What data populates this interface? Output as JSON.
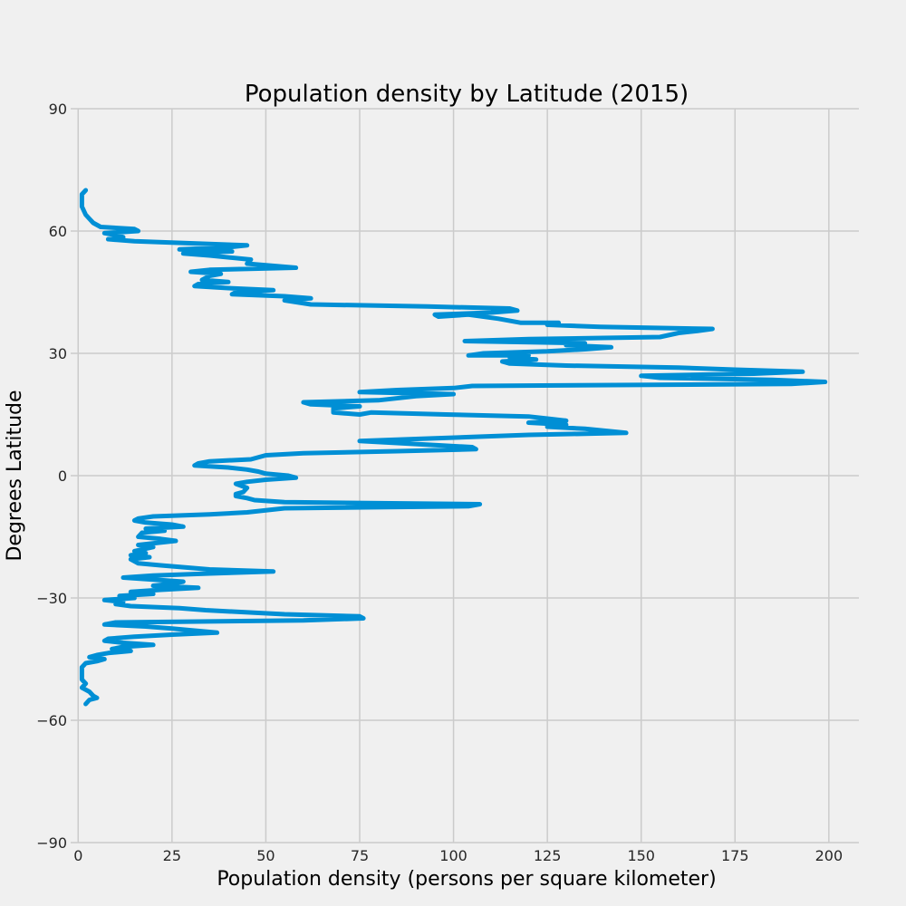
{
  "chart_data": {
    "type": "line",
    "title": "Population density by Latitude (2015)",
    "xlabel": "Population density (persons per square kilometer)",
    "ylabel": "Degrees Latitude",
    "xlim": [
      -2,
      208
    ],
    "ylim": [
      -90,
      90
    ],
    "xticks": [
      0,
      25,
      50,
      75,
      100,
      125,
      150,
      175,
      200
    ],
    "yticks": [
      -90,
      -60,
      -30,
      0,
      30,
      60,
      90
    ],
    "ytick_labels": [
      "−90",
      "−60",
      "−30",
      "0",
      "30",
      "60",
      "90"
    ],
    "grid": true,
    "orientation": "density on x-axis, latitude on y-axis",
    "series": [
      {
        "color": "#008fd5",
        "points": [
          [
            2,
            70
          ],
          [
            1,
            69
          ],
          [
            1,
            66
          ],
          [
            2,
            64
          ],
          [
            3,
            63
          ],
          [
            4,
            62
          ],
          [
            6,
            61
          ],
          [
            15,
            60.5
          ],
          [
            16,
            60
          ],
          [
            7,
            59.5
          ],
          [
            10,
            59
          ],
          [
            12,
            58.5
          ],
          [
            8,
            58
          ],
          [
            15,
            57.5
          ],
          [
            45,
            56.5
          ],
          [
            40,
            56
          ],
          [
            27,
            55.5
          ],
          [
            35,
            55.2
          ],
          [
            41,
            55
          ],
          [
            28,
            54.5
          ],
          [
            35,
            54
          ],
          [
            46,
            53
          ],
          [
            45,
            52
          ],
          [
            58,
            51
          ],
          [
            35,
            50.5
          ],
          [
            30,
            50
          ],
          [
            38,
            49.5
          ],
          [
            35,
            49
          ],
          [
            33,
            48
          ],
          [
            40,
            47.5
          ],
          [
            32,
            47
          ],
          [
            31,
            46.5
          ],
          [
            40,
            46
          ],
          [
            52,
            45.5
          ],
          [
            42,
            45
          ],
          [
            41,
            44.5
          ],
          [
            55,
            44
          ],
          [
            62,
            43.5
          ],
          [
            55,
            43
          ],
          [
            62,
            42
          ],
          [
            93,
            41.5
          ],
          [
            115,
            41
          ],
          [
            117,
            40.5
          ],
          [
            110,
            40
          ],
          [
            95,
            39.5
          ],
          [
            96,
            39
          ],
          [
            104,
            39.5
          ],
          [
            112,
            38.5
          ],
          [
            118,
            37.5
          ],
          [
            128,
            37.5
          ],
          [
            125,
            37
          ],
          [
            139,
            36.5
          ],
          [
            169,
            36
          ],
          [
            165,
            35.5
          ],
          [
            160,
            35
          ],
          [
            155,
            34
          ],
          [
            120,
            33.5
          ],
          [
            103,
            33
          ],
          [
            135,
            32.5
          ],
          [
            130,
            32
          ],
          [
            142,
            31.5
          ],
          [
            135,
            31
          ],
          [
            125,
            30.5
          ],
          [
            108,
            30
          ],
          [
            104,
            29.5
          ],
          [
            120,
            29.5
          ],
          [
            115,
            29
          ],
          [
            122,
            28.5
          ],
          [
            113,
            28
          ],
          [
            115,
            27.5
          ],
          [
            130,
            27
          ],
          [
            160,
            26.5
          ],
          [
            175,
            26
          ],
          [
            193,
            25.5
          ],
          [
            180,
            25
          ],
          [
            150,
            24.5
          ],
          [
            155,
            24
          ],
          [
            185,
            23.5
          ],
          [
            199,
            23
          ],
          [
            190,
            22.5
          ],
          [
            105,
            22
          ],
          [
            100,
            21.5
          ],
          [
            85,
            21
          ],
          [
            75,
            20.5
          ],
          [
            100,
            20
          ],
          [
            90,
            19.5
          ],
          [
            80,
            18.5
          ],
          [
            60,
            18
          ],
          [
            62,
            17.5
          ],
          [
            75,
            17
          ],
          [
            68,
            16.5
          ],
          [
            68,
            15.5
          ],
          [
            75,
            15
          ],
          [
            78,
            15.5
          ],
          [
            98,
            15
          ],
          [
            120,
            14.5
          ],
          [
            125,
            14
          ],
          [
            130,
            13.5
          ],
          [
            120,
            13
          ],
          [
            130,
            12.5
          ],
          [
            125,
            12
          ],
          [
            135,
            11.5
          ],
          [
            146,
            10.5
          ],
          [
            120,
            10
          ],
          [
            105,
            9.5
          ],
          [
            90,
            9
          ],
          [
            75,
            8.5
          ],
          [
            85,
            8
          ],
          [
            95,
            7.5
          ],
          [
            105,
            7
          ],
          [
            106,
            6.5
          ],
          [
            85,
            6
          ],
          [
            60,
            5.5
          ],
          [
            50,
            5
          ],
          [
            46,
            4
          ],
          [
            35,
            3.5
          ],
          [
            32,
            3
          ],
          [
            31,
            2.5
          ],
          [
            40,
            2
          ],
          [
            45,
            1.5
          ],
          [
            48,
            1
          ],
          [
            50,
            0.5
          ],
          [
            56,
            0
          ],
          [
            58,
            -0.5
          ],
          [
            50,
            -1
          ],
          [
            45,
            -1.5
          ],
          [
            42,
            -2
          ],
          [
            45,
            -3
          ],
          [
            44,
            -4
          ],
          [
            42,
            -4.5
          ],
          [
            42,
            -5
          ],
          [
            45,
            -5.5
          ],
          [
            47,
            -6
          ],
          [
            55,
            -6.5
          ],
          [
            107,
            -7
          ],
          [
            104,
            -7.5
          ],
          [
            55,
            -8
          ],
          [
            45,
            -9
          ],
          [
            35,
            -9.5
          ],
          [
            20,
            -10
          ],
          [
            16,
            -10.5
          ],
          [
            15,
            -11
          ],
          [
            18,
            -11.5
          ],
          [
            25,
            -12
          ],
          [
            28,
            -12.5
          ],
          [
            18,
            -13
          ],
          [
            23,
            -13.5
          ],
          [
            17,
            -14
          ],
          [
            16,
            -15
          ],
          [
            22,
            -15.5
          ],
          [
            26,
            -16
          ],
          [
            16,
            -17
          ],
          [
            20,
            -17.5
          ],
          [
            15,
            -18.5
          ],
          [
            18,
            -19
          ],
          [
            14,
            -19.5
          ],
          [
            19,
            -20
          ],
          [
            14,
            -20.5
          ],
          [
            16,
            -21.5
          ],
          [
            22,
            -22
          ],
          [
            35,
            -23
          ],
          [
            52,
            -23.5
          ],
          [
            35,
            -24
          ],
          [
            20,
            -24.5
          ],
          [
            12,
            -25
          ],
          [
            28,
            -26
          ],
          [
            25,
            -26.5
          ],
          [
            20,
            -27
          ],
          [
            32,
            -27.5
          ],
          [
            22,
            -28
          ],
          [
            14,
            -28.5
          ],
          [
            20,
            -29
          ],
          [
            11,
            -29.5
          ],
          [
            15,
            -30
          ],
          [
            7,
            -30.5
          ],
          [
            12,
            -31
          ],
          [
            10,
            -31.5
          ],
          [
            14,
            -32
          ],
          [
            27,
            -32.5
          ],
          [
            34,
            -33
          ],
          [
            55,
            -34
          ],
          [
            75,
            -34.5
          ],
          [
            76,
            -35
          ],
          [
            60,
            -35.5
          ],
          [
            10,
            -36
          ],
          [
            7,
            -36.5
          ],
          [
            18,
            -37
          ],
          [
            25,
            -37.5
          ],
          [
            37,
            -38.5
          ],
          [
            25,
            -39
          ],
          [
            15,
            -39.5
          ],
          [
            8,
            -40
          ],
          [
            7,
            -40.5
          ],
          [
            12,
            -41
          ],
          [
            20,
            -41.5
          ],
          [
            12,
            -42
          ],
          [
            9,
            -42.5
          ],
          [
            14,
            -43
          ],
          [
            8,
            -43.5
          ],
          [
            5,
            -44
          ],
          [
            3,
            -44.5
          ],
          [
            7,
            -45
          ],
          [
            5,
            -45.5
          ],
          [
            2,
            -46
          ],
          [
            1,
            -47
          ],
          [
            1,
            -50
          ],
          [
            2,
            -51
          ],
          [
            1,
            -52
          ],
          [
            3,
            -53
          ],
          [
            4,
            -54
          ],
          [
            5,
            -54.5
          ],
          [
            3,
            -55
          ],
          [
            2,
            -56
          ]
        ]
      }
    ]
  }
}
